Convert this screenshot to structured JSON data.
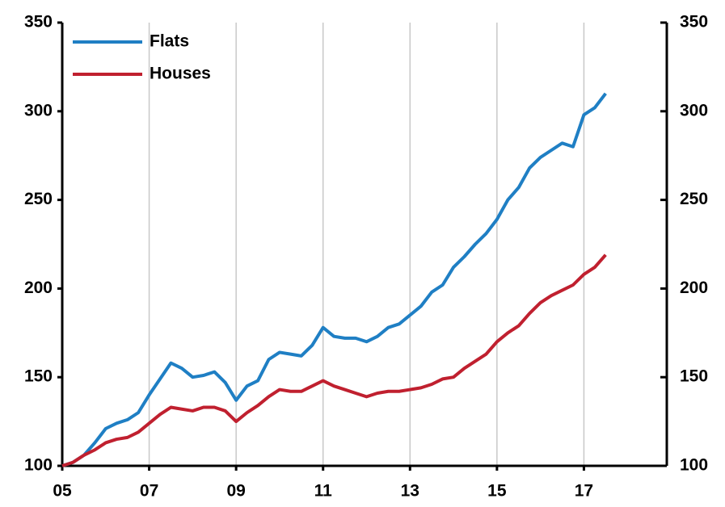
{
  "chart_data": {
    "type": "line",
    "x": [
      2005,
      2005.25,
      2005.5,
      2005.75,
      2006,
      2006.25,
      2006.5,
      2006.75,
      2007,
      2007.25,
      2007.5,
      2007.75,
      2008,
      2008.25,
      2008.5,
      2008.75,
      2009,
      2009.25,
      2009.5,
      2009.75,
      2010,
      2010.25,
      2010.5,
      2010.75,
      2011,
      2011.25,
      2011.5,
      2011.75,
      2012,
      2012.25,
      2012.5,
      2012.75,
      2013,
      2013.25,
      2013.5,
      2013.75,
      2014,
      2014.25,
      2014.5,
      2014.75,
      2015,
      2015.25,
      2015.5,
      2015.75,
      2016,
      2016.25,
      2016.5,
      2016.75,
      2017,
      2017.25,
      2017.5
    ],
    "series": [
      {
        "name": "Flats",
        "color": "#1f7fc4",
        "values": [
          100,
          102,
          106,
          113,
          121,
          124,
          126,
          130,
          140,
          149,
          158,
          155,
          150,
          151,
          153,
          147,
          137,
          145,
          148,
          160,
          164,
          163,
          162,
          168,
          178,
          173,
          172,
          172,
          170,
          173,
          178,
          180,
          185,
          190,
          198,
          202,
          212,
          218,
          225,
          231,
          239,
          250,
          257,
          268,
          274,
          278,
          282,
          280,
          298,
          302,
          310
        ]
      },
      {
        "name": "Houses",
        "color": "#c0202f",
        "values": [
          100,
          102,
          106,
          109,
          113,
          115,
          116,
          119,
          124,
          129,
          133,
          132,
          131,
          133,
          133,
          131,
          125,
          130,
          134,
          139,
          143,
          142,
          142,
          145,
          148,
          145,
          143,
          141,
          139,
          141,
          142,
          142,
          143,
          144,
          146,
          149,
          150,
          155,
          159,
          163,
          170,
          175,
          179,
          186,
          192,
          196,
          199,
          202,
          208,
          212,
          219
        ]
      }
    ],
    "xlim": [
      2005,
      2019
    ],
    "xticks": [
      {
        "value": 2005,
        "label": "05"
      },
      {
        "value": 2007,
        "label": "07"
      },
      {
        "value": 2009,
        "label": "09"
      },
      {
        "value": 2011,
        "label": "11"
      },
      {
        "value": 2013,
        "label": "13"
      },
      {
        "value": 2015,
        "label": "15"
      },
      {
        "value": 2017,
        "label": "17"
      }
    ],
    "ylim": [
      100,
      350
    ],
    "yticks": [
      100,
      150,
      200,
      250,
      300,
      350
    ],
    "y2lim": [
      100,
      350
    ],
    "y2ticks": [
      100,
      150,
      200,
      250,
      300,
      350
    ],
    "grid": "x",
    "legend": "upper left"
  }
}
